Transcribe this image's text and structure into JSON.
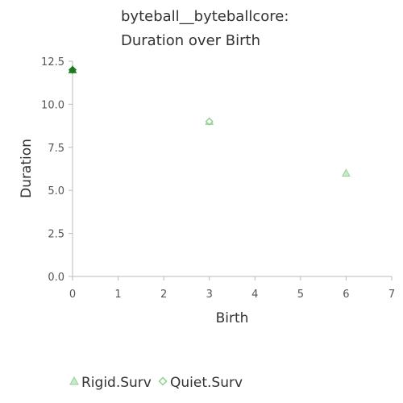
{
  "chart_data": {
    "type": "scatter",
    "title_lines": [
      "byteball__byteballcore:",
      "Duration over Birth"
    ],
    "xlabel": "Birth",
    "ylabel": "Duration",
    "xlim": [
      0,
      7
    ],
    "ylim": [
      0,
      12.5
    ],
    "x_ticks": [
      0,
      1,
      2,
      3,
      4,
      5,
      6,
      7
    ],
    "y_ticks": [
      0,
      2.5,
      5,
      7.5,
      10,
      12.5
    ],
    "x_tick_labels": [
      "0",
      "1",
      "2",
      "3",
      "4",
      "5",
      "6",
      "7"
    ],
    "y_tick_labels": [
      "0.0",
      "2.5",
      "5.0",
      "7.5",
      "10.0",
      "12.5"
    ],
    "grid": false,
    "legend_position": "bottom-left",
    "series": [
      {
        "name": "Rigid.Surv",
        "marker": "triangle",
        "color": "#8fd18f",
        "points": [
          {
            "x": 0,
            "y": 12
          },
          {
            "x": 3,
            "y": 9
          },
          {
            "x": 6,
            "y": 6
          }
        ]
      },
      {
        "name": "Quiet.Surv",
        "marker": "diamond",
        "color": "#8fd18f",
        "points": [
          {
            "x": 0,
            "y": 12
          },
          {
            "x": 3,
            "y": 9
          }
        ]
      }
    ],
    "highlight_color": "#1e7a1e"
  }
}
